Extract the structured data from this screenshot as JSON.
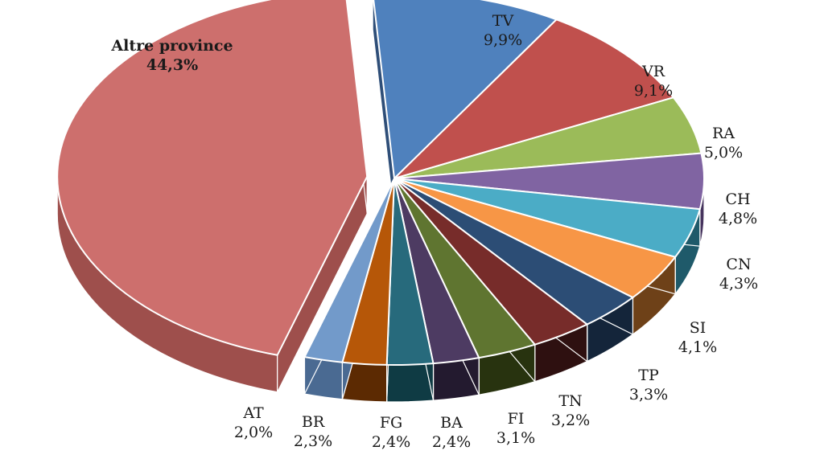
{
  "chart_data": {
    "type": "pie",
    "style": "3d-exploded",
    "title": "",
    "slices": [
      {
        "label": "TV",
        "value": 9.9,
        "value_label": "9,9%",
        "color": "#4F81BD",
        "side": "#2E4E78"
      },
      {
        "label": "VR",
        "value": 9.1,
        "value_label": "9,1%",
        "color": "#C0504D",
        "side": "#5C1F1D"
      },
      {
        "label": "RA",
        "value": 5.0,
        "value_label": "5,0%",
        "color": "#9BBB59",
        "side": "#56702A"
      },
      {
        "label": "CH",
        "value": 4.8,
        "value_label": "4,8%",
        "color": "#8064A2",
        "side": "#46345E"
      },
      {
        "label": "CN",
        "value": 4.3,
        "value_label": "4,3%",
        "color": "#4BACC6",
        "side": "#1F5A6A"
      },
      {
        "label": "SI",
        "value": 4.1,
        "value_label": "4,1%",
        "color": "#F79646",
        "side": "#6E4118"
      },
      {
        "label": "TP",
        "value": 3.3,
        "value_label": "3,3%",
        "color": "#2C4D75",
        "side": "#14253A"
      },
      {
        "label": "TN",
        "value": 3.2,
        "value_label": "3,2%",
        "color": "#772C2A",
        "side": "#2E1010"
      },
      {
        "label": "FI",
        "value": 3.1,
        "value_label": "3,1%",
        "color": "#5F7530",
        "side": "#28330F"
      },
      {
        "label": "BA",
        "value": 2.4,
        "value_label": "2,4%",
        "color": "#4D3B62",
        "side": "#231A2F"
      },
      {
        "label": "FG",
        "value": 2.4,
        "value_label": "2,4%",
        "color": "#276A7C",
        "side": "#0F3B44"
      },
      {
        "label": "BR",
        "value": 2.3,
        "value_label": "2,3%",
        "color": "#B65708",
        "side": "#5C2A02"
      },
      {
        "label": "AT",
        "value": 2.0,
        "value_label": "2,0%",
        "color": "#729ACA",
        "side": "#4A6A92"
      },
      {
        "label": "Altre province",
        "value": 44.3,
        "value_label": "44,3%",
        "color": "#CD6F6D",
        "side": "#9E4F4C",
        "exploded": true
      }
    ]
  }
}
